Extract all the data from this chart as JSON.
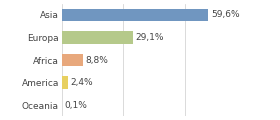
{
  "categories": [
    "Asia",
    "Europa",
    "Africa",
    "America",
    "Oceania"
  ],
  "values": [
    59.6,
    29.1,
    8.8,
    2.4,
    0.1
  ],
  "labels": [
    "59,6%",
    "29,1%",
    "8,8%",
    "2,4%",
    "0,1%"
  ],
  "bar_colors": [
    "#7096c0",
    "#b5c98a",
    "#e8a87c",
    "#e8d060",
    "#cccccc"
  ],
  "background_color": "#ffffff",
  "xlim": [
    0,
    75
  ],
  "label_fontsize": 6.5,
  "tick_fontsize": 6.5,
  "bar_height": 0.55
}
